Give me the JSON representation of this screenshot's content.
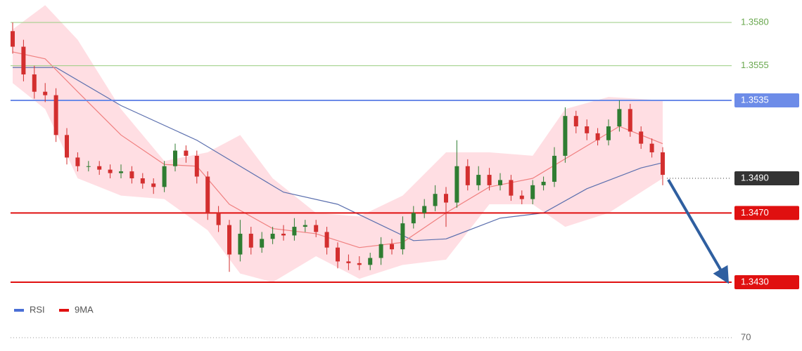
{
  "chart_data": {
    "type": "candlestick",
    "ylim": [
      1.343,
      1.358
    ],
    "candles": {
      "open": [
        1.3575,
        1.3566,
        1.355,
        1.354,
        1.3538,
        1.3515,
        1.3502,
        1.3497,
        1.3497,
        1.3495,
        1.3493,
        1.3494,
        1.349,
        1.3487,
        1.3485,
        1.3497,
        1.3506,
        1.3503,
        1.3491,
        1.347,
        1.3463,
        1.3446,
        1.3458,
        1.345,
        1.3455,
        1.3458,
        1.3457,
        1.3462,
        1.3463,
        1.3459,
        1.345,
        1.3442,
        1.3441,
        1.344,
        1.3444,
        1.3452,
        1.3449,
        1.3464,
        1.347,
        1.3474,
        1.3481,
        1.3476,
        1.3497,
        1.3486,
        1.3492,
        1.3486,
        1.3489,
        1.348,
        1.3478,
        1.3486,
        1.3488,
        1.3503,
        1.3526,
        1.352,
        1.3516,
        1.3512,
        1.352,
        1.353,
        1.3517,
        1.351,
        1.3505
      ],
      "high": [
        1.358,
        1.357,
        1.3555,
        1.3545,
        1.3542,
        1.3519,
        1.3505,
        1.35,
        1.35,
        1.3498,
        1.3498,
        1.3497,
        1.3493,
        1.349,
        1.35,
        1.351,
        1.3509,
        1.3506,
        1.3494,
        1.3474,
        1.3466,
        1.3466,
        1.3462,
        1.3459,
        1.3462,
        1.3463,
        1.3467,
        1.3466,
        1.3466,
        1.3462,
        1.3453,
        1.3446,
        1.3445,
        1.3447,
        1.3456,
        1.3455,
        1.3468,
        1.3474,
        1.3478,
        1.3486,
        1.3485,
        1.3512,
        1.3501,
        1.3497,
        1.3496,
        1.3493,
        1.3492,
        1.3483,
        1.3489,
        1.3491,
        1.3508,
        1.3531,
        1.3529,
        1.3524,
        1.3519,
        1.3524,
        1.3535,
        1.3533,
        1.352,
        1.3513,
        1.3508
      ],
      "low": [
        1.3562,
        1.3546,
        1.3536,
        1.3534,
        1.3511,
        1.3498,
        1.3494,
        1.3494,
        1.3492,
        1.349,
        1.349,
        1.3487,
        1.3484,
        1.3481,
        1.3482,
        1.3494,
        1.3499,
        1.3487,
        1.3466,
        1.3459,
        1.3436,
        1.3442,
        1.3446,
        1.3447,
        1.3452,
        1.3454,
        1.3454,
        1.3459,
        1.3456,
        1.3446,
        1.3438,
        1.3437,
        1.3437,
        1.3437,
        1.344,
        1.3446,
        1.3446,
        1.3461,
        1.3467,
        1.3471,
        1.3462,
        1.3473,
        1.3483,
        1.3483,
        1.3483,
        1.3483,
        1.3477,
        1.3475,
        1.3475,
        1.3483,
        1.3485,
        1.3499,
        1.3516,
        1.3512,
        1.3509,
        1.3509,
        1.3517,
        1.3514,
        1.3507,
        1.3502,
        1.3486
      ],
      "close": [
        1.3566,
        1.355,
        1.354,
        1.3538,
        1.3515,
        1.3502,
        1.3497,
        1.3497,
        1.3495,
        1.3493,
        1.3494,
        1.349,
        1.3487,
        1.3485,
        1.3497,
        1.3506,
        1.3503,
        1.3491,
        1.347,
        1.3463,
        1.3446,
        1.3458,
        1.345,
        1.3455,
        1.3458,
        1.3457,
        1.3462,
        1.3463,
        1.3459,
        1.345,
        1.3442,
        1.3441,
        1.344,
        1.3444,
        1.3452,
        1.3449,
        1.3464,
        1.347,
        1.3474,
        1.3481,
        1.3476,
        1.3497,
        1.3486,
        1.3492,
        1.3486,
        1.3489,
        1.348,
        1.3478,
        1.3486,
        1.3488,
        1.3503,
        1.3526,
        1.352,
        1.3516,
        1.3512,
        1.352,
        1.353,
        1.3517,
        1.351,
        1.3505,
        1.3492
      ],
      "up_color": "#2f7d32",
      "down_color": "#d32f2f"
    },
    "band": {
      "color": "#ffd6dc",
      "x": [
        0,
        3,
        6,
        10,
        14,
        18,
        21,
        24,
        28,
        32,
        36,
        40,
        44,
        48,
        51,
        55,
        60
      ],
      "upper": [
        1.3576,
        1.359,
        1.357,
        1.353,
        1.35,
        1.3505,
        1.3515,
        1.349,
        1.347,
        1.3468,
        1.348,
        1.3505,
        1.3505,
        1.3503,
        1.353,
        1.3537,
        1.3535
      ],
      "lower": [
        1.3545,
        1.353,
        1.349,
        1.348,
        1.3478,
        1.346,
        1.3435,
        1.343,
        1.3445,
        1.3432,
        1.344,
        1.3443,
        1.3475,
        1.3475,
        1.3462,
        1.347,
        1.349
      ]
    },
    "series": [
      {
        "color": "#5b6fae",
        "x": [
          0,
          4,
          10,
          17,
          25,
          30,
          37,
          40,
          45,
          49,
          53,
          58,
          60
        ],
        "values": [
          1.3554,
          1.3554,
          1.3532,
          1.3512,
          1.3482,
          1.3475,
          1.3454,
          1.3455,
          1.3467,
          1.347,
          1.3484,
          1.3496,
          1.3499
        ]
      },
      {
        "color": "#f08080",
        "x": [
          0,
          3,
          6,
          10,
          14,
          17,
          20,
          24,
          28,
          32,
          36,
          40,
          44,
          48,
          52,
          56,
          60
        ],
        "values": [
          1.3563,
          1.3559,
          1.354,
          1.3515,
          1.3498,
          1.3497,
          1.3475,
          1.3461,
          1.3458,
          1.345,
          1.3453,
          1.347,
          1.3485,
          1.349,
          1.3505,
          1.352,
          1.351
        ]
      }
    ],
    "levels": [
      {
        "value": 1.358,
        "label": "1.3580",
        "color": "#9acd80",
        "text_color": "#6aa84f",
        "box": false
      },
      {
        "value": 1.3555,
        "label": "1.3555",
        "color": "#9acd80",
        "text_color": "#6aa84f",
        "box": false
      },
      {
        "value": 1.3535,
        "label": "1.3535",
        "color": "#6d8ce8",
        "text_color": "#ffffff",
        "box": true
      },
      {
        "value": 1.347,
        "label": "1.3470",
        "color": "#e01010",
        "text_color": "#ffffff",
        "box": true
      },
      {
        "value": 1.343,
        "label": "1.3430",
        "color": "#e01010",
        "text_color": "#ffffff",
        "box": true
      }
    ],
    "current": {
      "value": 1.349,
      "label": "1.3490",
      "color": "#333333"
    },
    "legend": [
      {
        "name": "RSI",
        "color": "#4a6fd6"
      },
      {
        "name": "9MA",
        "color": "#e01010"
      }
    ],
    "rsi_yticks": [
      70
    ]
  }
}
